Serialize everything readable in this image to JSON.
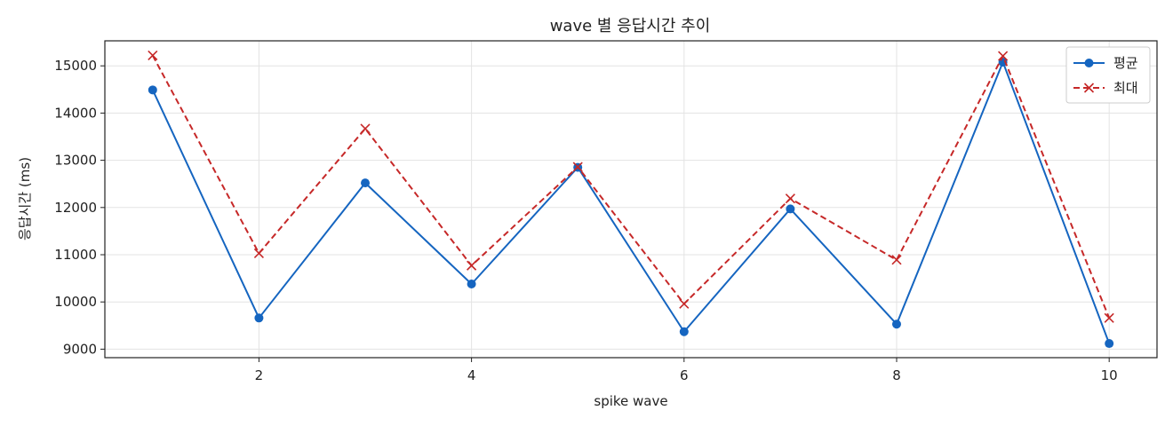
{
  "chart_data": {
    "type": "line",
    "title": "wave 별 응답시간 추이",
    "xlabel": "spike wave",
    "ylabel": "응답시간 (ms)",
    "x": [
      1,
      2,
      3,
      4,
      5,
      6,
      7,
      8,
      9,
      10
    ],
    "xlim": [
      0.55,
      10.45
    ],
    "ylim": [
      8820,
      15530
    ],
    "xticks": [
      2,
      4,
      6,
      8,
      10
    ],
    "yticks": [
      9000,
      10000,
      11000,
      12000,
      13000,
      14000,
      15000
    ],
    "grid": true,
    "legend_position": "top-right",
    "series": [
      {
        "name": "평균",
        "color": "#1565c0",
        "line_style": "solid",
        "marker": "circle",
        "values": [
          14490,
          9660,
          12520,
          10380,
          12850,
          9370,
          11970,
          9530,
          15080,
          9120
        ]
      },
      {
        "name": "최대",
        "color": "#c62828",
        "line_style": "dashed",
        "marker": "x",
        "values": [
          15220,
          11030,
          13670,
          10770,
          12860,
          9960,
          12190,
          10890,
          15210,
          9660
        ]
      }
    ]
  }
}
